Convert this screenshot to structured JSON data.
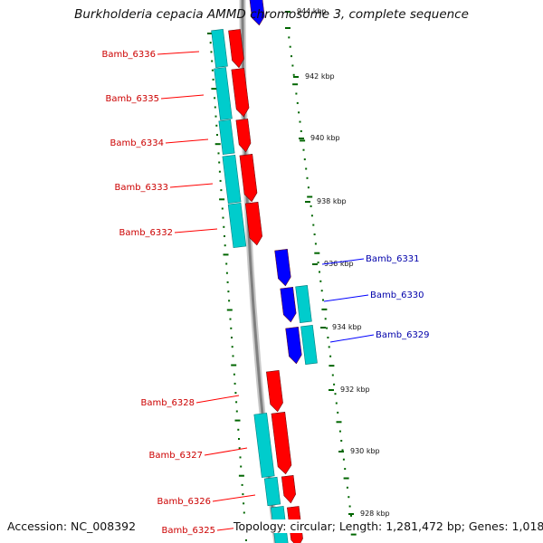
{
  "title": "Burkholderia cepacia AMMD chromosome 3, complete sequence",
  "footer": {
    "accession": "Accession: NC_008392",
    "summary": "Topology: circular; Length: 1,281,472 bp; Genes: 1,018"
  },
  "colors": {
    "forward_gene": "#ff0000",
    "reverse_gene": "#0000ff",
    "cds": "#00cccc",
    "backbone": "#808080",
    "tick": "#006600"
  },
  "scale_labels": [
    {
      "text": "944 kbp",
      "kbp": 944
    },
    {
      "text": "942 kbp",
      "kbp": 942
    },
    {
      "text": "940 kbp",
      "kbp": 940
    },
    {
      "text": "938 kbp",
      "kbp": 938
    },
    {
      "text": "936 kbp",
      "kbp": 936
    },
    {
      "text": "934 kbp",
      "kbp": 934
    },
    {
      "text": "932 kbp",
      "kbp": 932
    },
    {
      "text": "930 kbp",
      "kbp": 930
    },
    {
      "text": "928 kbp",
      "kbp": 928
    }
  ],
  "genes": [
    {
      "id": "Bamb_6336",
      "strand": "forward"
    },
    {
      "id": "Bamb_6335",
      "strand": "forward"
    },
    {
      "id": "Bamb_6334",
      "strand": "forward"
    },
    {
      "id": "Bamb_6333",
      "strand": "forward"
    },
    {
      "id": "Bamb_6332",
      "strand": "forward"
    },
    {
      "id": "Bamb_6331",
      "strand": "reverse"
    },
    {
      "id": "Bamb_6330",
      "strand": "reverse"
    },
    {
      "id": "Bamb_6329",
      "strand": "reverse"
    },
    {
      "id": "Bamb_6328",
      "strand": "forward"
    },
    {
      "id": "Bamb_6327",
      "strand": "forward"
    },
    {
      "id": "Bamb_6326",
      "strand": "forward"
    },
    {
      "id": "Bamb_6325",
      "strand": "forward"
    }
  ]
}
